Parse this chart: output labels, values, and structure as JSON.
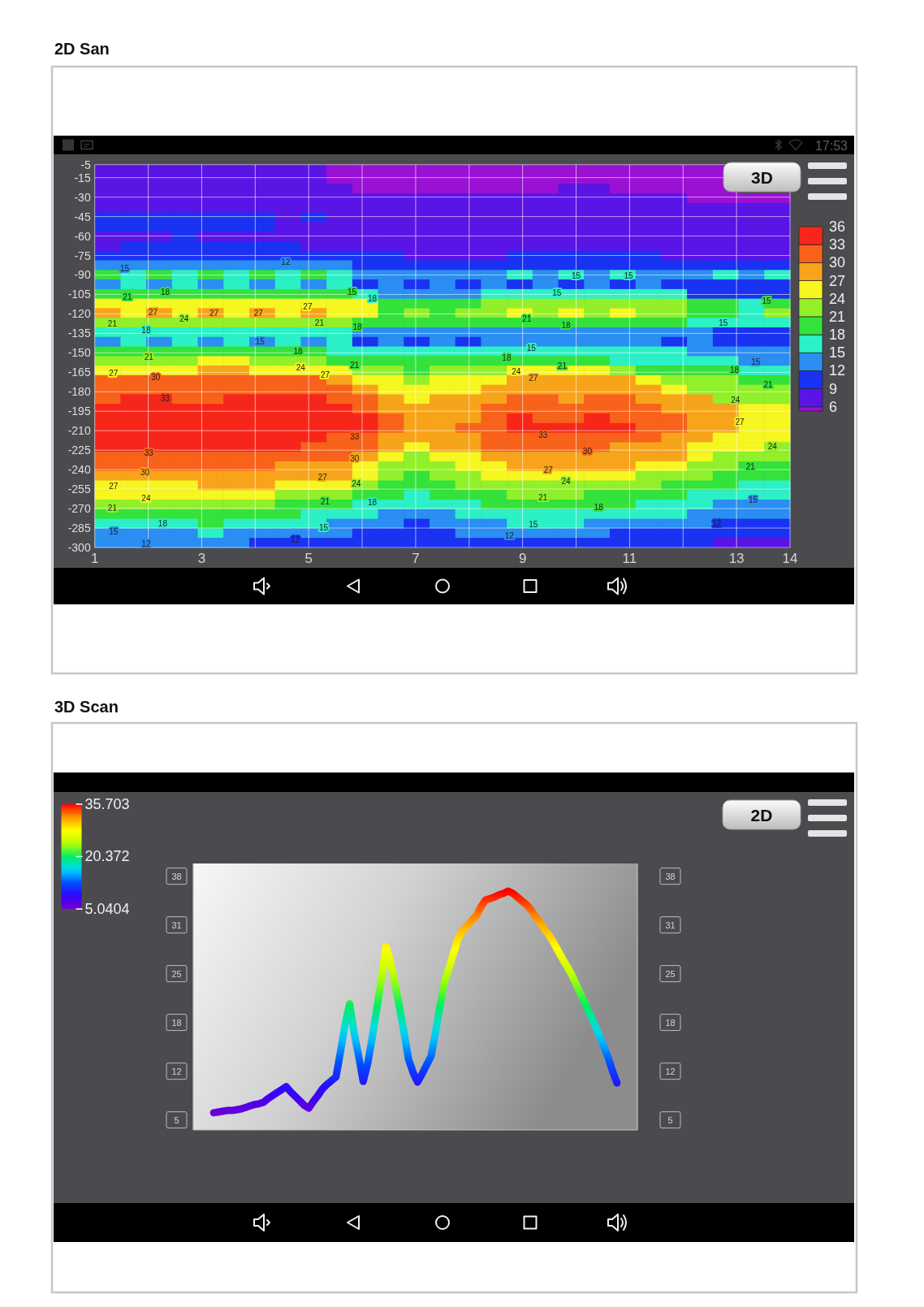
{
  "chart_data": [
    {
      "type": "heatmap",
      "title": "2D San",
      "xlim": [
        1,
        14
      ],
      "xticks": [
        1,
        {
          "value": 2,
          "label": null
        },
        3,
        {
          "value": 4,
          "label": null
        },
        5,
        {
          "value": 6,
          "label": null
        },
        7,
        {
          "value": 8,
          "label": null
        },
        9,
        {
          "value": 10,
          "label": null
        },
        11,
        {
          "value": 12,
          "label": null
        },
        13,
        14
      ],
      "ylim": [
        -300,
        -5
      ],
      "yticks": [
        -5,
        -15,
        -30,
        -45,
        -60,
        -75,
        -90,
        -105,
        -120,
        -135,
        -150,
        -165,
        -180,
        -195,
        -210,
        -225,
        -240,
        -255,
        -270,
        -285,
        -300
      ],
      "grid": true,
      "clim": [
        5.3,
        36
      ],
      "cticks": [
        6,
        9,
        12,
        15,
        18,
        21,
        24,
        27,
        30,
        33,
        36
      ],
      "cells": [
        [
          8,
          8,
          8,
          8,
          8,
          8,
          8,
          8,
          8,
          5.5,
          5.5,
          5.5,
          5.5,
          5.5,
          5.5,
          5.5,
          5.5,
          5.5,
          5.5,
          5.5,
          5.5,
          5.5,
          5.5,
          5.5,
          5.5,
          null,
          null
        ],
        [
          8,
          8,
          8,
          8,
          8,
          8,
          8,
          8,
          8,
          5.5,
          5.5,
          5.5,
          5.5,
          5.5,
          5.5,
          5.5,
          5.5,
          5.5,
          5.5,
          5.5,
          5.5,
          5.5,
          5.5,
          5.5,
          5.5,
          null,
          null
        ],
        [
          8,
          8,
          8,
          8,
          8,
          8,
          8,
          8,
          8,
          8,
          5.5,
          5.5,
          5.5,
          5.5,
          5.5,
          5.5,
          5.5,
          5.5,
          8,
          8,
          5.5,
          5.5,
          5.5,
          5.5,
          5.5,
          null,
          null
        ],
        [
          8,
          8,
          8,
          8,
          8,
          8,
          8,
          8,
          8,
          8,
          8,
          8,
          8,
          8,
          8,
          8,
          8,
          8,
          8,
          8,
          8,
          8,
          8,
          5.5,
          5.5,
          5.5,
          5.5
        ],
        [
          8,
          8,
          8,
          8,
          8,
          8,
          8,
          8,
          8,
          8,
          8,
          8,
          8,
          8,
          8,
          8,
          8,
          8,
          8,
          8,
          8,
          8,
          8,
          8,
          8,
          8,
          8
        ],
        [
          11,
          11,
          11,
          11,
          11,
          11,
          11,
          8,
          11,
          8,
          8,
          8,
          8,
          8,
          8,
          8,
          8,
          8,
          8,
          8,
          8,
          8,
          8,
          8,
          8,
          8,
          8
        ],
        [
          11,
          11,
          11,
          11,
          11,
          11,
          11,
          8,
          8,
          8,
          8,
          8,
          8,
          8,
          8,
          8,
          8,
          8,
          8,
          8,
          8,
          8,
          8,
          8,
          8,
          8,
          8
        ],
        [
          8,
          8,
          8,
          11,
          8,
          8,
          8,
          8,
          8,
          8,
          8,
          8,
          8,
          8,
          8,
          8,
          8,
          8,
          8,
          8,
          8,
          8,
          8,
          8,
          8,
          8,
          8
        ],
        [
          8,
          11,
          11,
          11,
          11,
          11,
          11,
          11,
          8,
          8,
          8,
          8,
          8,
          8,
          8,
          8,
          8,
          8,
          8,
          8,
          8,
          8,
          8,
          8,
          8,
          8,
          8
        ],
        [
          11,
          11,
          11,
          11,
          11,
          11,
          11,
          11,
          11,
          11,
          11,
          11,
          8,
          8,
          8,
          8,
          11,
          11,
          11,
          11,
          11,
          11,
          8,
          8,
          8,
          8,
          8
        ],
        [
          14,
          14,
          14,
          14,
          14,
          14,
          14,
          14,
          14,
          14,
          11,
          11,
          11,
          11,
          11,
          11,
          11,
          11,
          11,
          11,
          11,
          11,
          11,
          11,
          11,
          11,
          11
        ],
        [
          20,
          17,
          20,
          17,
          20,
          17,
          20,
          17,
          20,
          17,
          14,
          14,
          14,
          14,
          14,
          14,
          17,
          14,
          17,
          14,
          17,
          14,
          14,
          14,
          17,
          14,
          17
        ],
        [
          14,
          17,
          14,
          17,
          14,
          17,
          14,
          17,
          14,
          17,
          11,
          14,
          11,
          14,
          11,
          14,
          11,
          14,
          11,
          14,
          11,
          14,
          11,
          11,
          11,
          11,
          11
        ],
        [
          20,
          20,
          20,
          20,
          20,
          20,
          20,
          20,
          20,
          20,
          17,
          14,
          14,
          14,
          14,
          17,
          17,
          17,
          17,
          17,
          17,
          17,
          17,
          11,
          11,
          11,
          11
        ],
        [
          26,
          26,
          26,
          26,
          26,
          26,
          26,
          26,
          26,
          26,
          26,
          20,
          20,
          20,
          20,
          23,
          23,
          23,
          23,
          23,
          23,
          23,
          23,
          20,
          20,
          17,
          20
        ],
        [
          29,
          26,
          29,
          26,
          29,
          26,
          29,
          26,
          29,
          26,
          26,
          20,
          23,
          20,
          23,
          23,
          26,
          23,
          26,
          23,
          26,
          23,
          23,
          20,
          20,
          17,
          23
        ],
        [
          23,
          23,
          23,
          23,
          23,
          23,
          23,
          23,
          23,
          23,
          20,
          20,
          20,
          20,
          20,
          20,
          20,
          20,
          20,
          20,
          20,
          20,
          20,
          17,
          17,
          17,
          17
        ],
        [
          17,
          17,
          17,
          17,
          17,
          17,
          17,
          17,
          17,
          17,
          14,
          14,
          14,
          14,
          14,
          14,
          14,
          14,
          14,
          14,
          14,
          14,
          14,
          14,
          11,
          11,
          11
        ],
        [
          14,
          17,
          14,
          17,
          14,
          17,
          14,
          17,
          14,
          17,
          11,
          14,
          11,
          14,
          11,
          14,
          14,
          14,
          14,
          14,
          14,
          14,
          11,
          14,
          11,
          11,
          11
        ],
        [
          20,
          20,
          20,
          20,
          20,
          20,
          20,
          20,
          20,
          17,
          17,
          17,
          17,
          17,
          17,
          17,
          17,
          17,
          17,
          17,
          17,
          17,
          17,
          14,
          14,
          14,
          14
        ],
        [
          23,
          23,
          23,
          23,
          26,
          26,
          23,
          23,
          23,
          20,
          20,
          20,
          20,
          20,
          20,
          20,
          20,
          20,
          20,
          20,
          17,
          17,
          17,
          17,
          17,
          14,
          14
        ],
        [
          26,
          26,
          26,
          26,
          29,
          29,
          26,
          26,
          26,
          26,
          23,
          23,
          20,
          23,
          23,
          23,
          26,
          26,
          26,
          26,
          23,
          20,
          20,
          20,
          20,
          17,
          17
        ],
        [
          32,
          32,
          32,
          32,
          32,
          32,
          32,
          32,
          32,
          29,
          26,
          26,
          23,
          26,
          26,
          26,
          29,
          29,
          29,
          29,
          29,
          26,
          23,
          23,
          23,
          20,
          20
        ],
        [
          32,
          32,
          32,
          32,
          32,
          32,
          32,
          32,
          32,
          32,
          29,
          26,
          26,
          26,
          26,
          29,
          29,
          29,
          29,
          29,
          29,
          29,
          26,
          23,
          23,
          23,
          23
        ],
        [
          32,
          35,
          35,
          32,
          32,
          35,
          35,
          35,
          35,
          32,
          32,
          29,
          26,
          29,
          29,
          29,
          32,
          32,
          29,
          32,
          32,
          29,
          29,
          29,
          23,
          23,
          23
        ],
        [
          35,
          35,
          35,
          35,
          35,
          35,
          35,
          35,
          35,
          35,
          32,
          29,
          29,
          29,
          29,
          32,
          32,
          32,
          32,
          32,
          32,
          32,
          29,
          29,
          29,
          26,
          26
        ],
        [
          35,
          35,
          35,
          35,
          35,
          35,
          35,
          35,
          35,
          35,
          35,
          32,
          29,
          29,
          29,
          32,
          35,
          32,
          32,
          35,
          32,
          32,
          32,
          29,
          29,
          26,
          26
        ],
        [
          35,
          35,
          35,
          35,
          35,
          35,
          35,
          35,
          35,
          35,
          35,
          32,
          29,
          29,
          32,
          32,
          35,
          35,
          35,
          35,
          35,
          32,
          32,
          29,
          29,
          26,
          26
        ],
        [
          35,
          35,
          35,
          35,
          35,
          35,
          35,
          35,
          35,
          32,
          32,
          29,
          29,
          29,
          29,
          32,
          32,
          32,
          32,
          32,
          32,
          32,
          29,
          29,
          26,
          26,
          26
        ],
        [
          35,
          35,
          35,
          35,
          35,
          35,
          35,
          35,
          32,
          32,
          32,
          29,
          26,
          29,
          29,
          32,
          32,
          32,
          32,
          32,
          29,
          29,
          29,
          26,
          26,
          26,
          23
        ],
        [
          32,
          32,
          32,
          32,
          32,
          32,
          32,
          32,
          32,
          32,
          29,
          26,
          23,
          26,
          26,
          29,
          29,
          29,
          29,
          29,
          29,
          29,
          29,
          26,
          23,
          23,
          23
        ],
        [
          32,
          32,
          32,
          32,
          32,
          32,
          32,
          29,
          29,
          29,
          26,
          23,
          23,
          23,
          26,
          26,
          29,
          29,
          29,
          29,
          29,
          26,
          26,
          23,
          23,
          20,
          20
        ],
        [
          29,
          29,
          29,
          29,
          29,
          29,
          29,
          29,
          29,
          29,
          26,
          23,
          20,
          23,
          23,
          26,
          26,
          26,
          26,
          26,
          26,
          23,
          23,
          23,
          20,
          20,
          20
        ],
        [
          26,
          26,
          26,
          26,
          29,
          29,
          29,
          26,
          26,
          26,
          23,
          20,
          20,
          20,
          23,
          23,
          23,
          23,
          23,
          23,
          23,
          23,
          20,
          20,
          20,
          17,
          17
        ],
        [
          26,
          26,
          26,
          26,
          26,
          26,
          26,
          23,
          23,
          23,
          20,
          20,
          17,
          20,
          20,
          20,
          23,
          23,
          23,
          20,
          20,
          20,
          20,
          17,
          17,
          17,
          17
        ],
        [
          23,
          23,
          23,
          23,
          23,
          23,
          23,
          20,
          20,
          20,
          17,
          17,
          17,
          17,
          17,
          20,
          20,
          20,
          20,
          20,
          20,
          17,
          17,
          17,
          14,
          14,
          14
        ],
        [
          20,
          20,
          20,
          20,
          20,
          20,
          20,
          20,
          17,
          17,
          17,
          14,
          14,
          14,
          17,
          17,
          17,
          17,
          17,
          17,
          17,
          17,
          17,
          14,
          14,
          14,
          14
        ],
        [
          17,
          17,
          17,
          17,
          20,
          17,
          17,
          17,
          17,
          14,
          14,
          14,
          11,
          14,
          14,
          14,
          17,
          17,
          17,
          14,
          14,
          14,
          14,
          14,
          11,
          11,
          11
        ],
        [
          14,
          14,
          14,
          14,
          17,
          14,
          14,
          14,
          14,
          14,
          11,
          11,
          11,
          11,
          14,
          14,
          14,
          14,
          14,
          14,
          11,
          11,
          11,
          11,
          11,
          11,
          11
        ],
        [
          14,
          14,
          14,
          14,
          14,
          14,
          11,
          11,
          11,
          11,
          11,
          11,
          11,
          11,
          11,
          11,
          11,
          11,
          11,
          11,
          11,
          11,
          11,
          11,
          8,
          8,
          8
        ]
      ],
      "annotations": [
        "3D",
        "17:53",
        "15",
        "12",
        "18",
        "21",
        "15",
        "18",
        "27",
        "27",
        "27",
        "27",
        "24",
        "21",
        "21",
        "18",
        "18",
        "15",
        "18",
        "21",
        "24",
        "21",
        "27",
        "27",
        "30",
        "33",
        "33",
        "33",
        "30",
        "30",
        "27",
        "27",
        "24",
        "24",
        "21",
        "18",
        "21",
        "18",
        "15",
        "15",
        "12",
        "12",
        "15",
        "15",
        "15",
        "15",
        "21",
        "18",
        "15",
        "15",
        "18",
        "15",
        "21",
        "24",
        "27",
        "18",
        "21",
        "24",
        "27",
        "33",
        "24",
        "30",
        "21",
        "27",
        "24",
        "21",
        "15",
        "18",
        "15",
        "12",
        "12"
      ]
    },
    {
      "type": "line",
      "title": "3D Scan",
      "categories": [
        null,
        null,
        null,
        null,
        null,
        null,
        null,
        null,
        null,
        null,
        null,
        null,
        null,
        null,
        null,
        null,
        null,
        null,
        null,
        null,
        null,
        null,
        null,
        null,
        null,
        null,
        null,
        null,
        null,
        null,
        null,
        null,
        null,
        null,
        null,
        null,
        null,
        null,
        null,
        null,
        null,
        null,
        null,
        null,
        null,
        null,
        null,
        null,
        null,
        null,
        null,
        null,
        null,
        null,
        null,
        null,
        null,
        null,
        null,
        null,
        null,
        null,
        null,
        null,
        null,
        null,
        null,
        null,
        null,
        null,
        null,
        null,
        null,
        null,
        null,
        null,
        null,
        null,
        null,
        null,
        null,
        null,
        null,
        null,
        null,
        null,
        null,
        null,
        null,
        null
      ],
      "values": [
        6,
        6.1,
        6.2,
        6.3,
        6.3,
        6.4,
        6.5,
        6.7,
        6.9,
        7.1,
        7.2,
        7.4,
        7.9,
        8.3,
        8.7,
        9.1,
        9.5,
        8.8,
        8.2,
        7.6,
        7,
        6.6,
        7.5,
        8.3,
        9.2,
        9.8,
        10.3,
        10.8,
        14.2,
        17.8,
        20.6,
        16.7,
        13.6,
        10.2,
        12.6,
        16.1,
        19.9,
        23.8,
        28.3,
        26.2,
        23.3,
        20.2,
        16.8,
        13.2,
        11.4,
        10.1,
        11.2,
        12.4,
        13.6,
        16.9,
        20.5,
        23.7,
        25.5,
        27.5,
        29.4,
        30.5,
        31.1,
        31.8,
        32.4,
        33.6,
        34.5,
        34.7,
        34.9,
        35.2,
        35.4,
        35.7,
        35.4,
        34.9,
        34.4,
        33.9,
        33.2,
        32.3,
        31.5,
        30.6,
        29.8,
        28.8,
        27.7,
        26.6,
        25.6,
        24.5,
        23.2,
        21.9,
        20.6,
        19.3,
        17.9,
        16.5,
        15,
        13.5,
        11.6,
        10
      ],
      "ylim": [
        3.7,
        39.4
      ],
      "yticks": [
        {
          "value": 5.04,
          "label": "5"
        },
        {
          "value": 11.57,
          "label": "12"
        },
        {
          "value": 18.11,
          "label": "18"
        },
        {
          "value": 24.64,
          "label": "25"
        },
        {
          "value": 31.17,
          "label": "31"
        },
        {
          "value": 37.7,
          "label": "38"
        }
      ],
      "y2lim": [
        3.7,
        39.4
      ],
      "y2ticks": [
        {
          "value": 5.04,
          "label": "5"
        },
        {
          "value": 11.57,
          "label": "12"
        },
        {
          "value": 18.11,
          "label": "18"
        },
        {
          "value": 24.64,
          "label": "25"
        },
        {
          "value": 31.17,
          "label": "31"
        },
        {
          "value": 37.7,
          "label": "38"
        }
      ],
      "tick_labels": "y",
      "clim": [
        5.0404,
        35.703
      ],
      "cticks": [
        5.0404,
        20.372,
        35.703
      ],
      "annotations": [
        "2D"
      ]
    }
  ]
}
